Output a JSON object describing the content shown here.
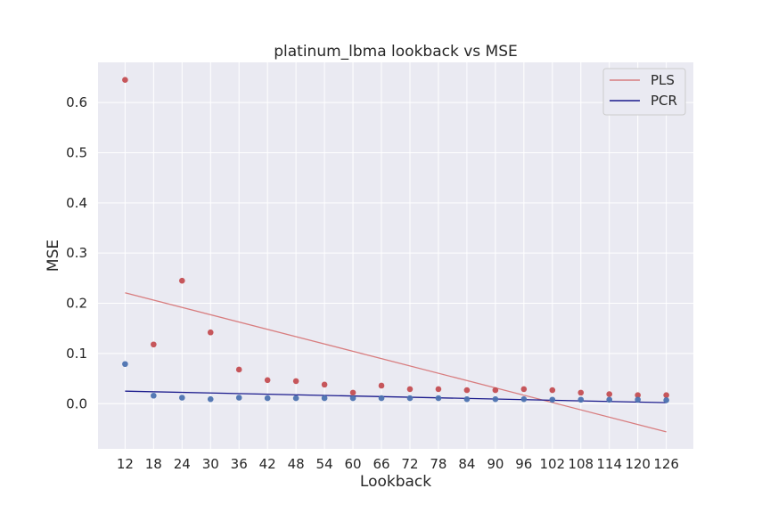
{
  "chart_data": {
    "type": "scatter",
    "title": "platinum_lbma lookback vs MSE",
    "xlabel": "Lookback",
    "ylabel": "MSE",
    "x": [
      12,
      18,
      24,
      30,
      36,
      42,
      48,
      54,
      60,
      66,
      72,
      78,
      84,
      90,
      96,
      102,
      108,
      114,
      120,
      126
    ],
    "xticks": [
      "12",
      "18",
      "24",
      "30",
      "36",
      "42",
      "48",
      "54",
      "60",
      "66",
      "72",
      "78",
      "84",
      "90",
      "96",
      "102",
      "108",
      "114",
      "120",
      "126"
    ],
    "yticks": [
      "0.0",
      "0.1",
      "0.2",
      "0.3",
      "0.4",
      "0.5",
      "0.6"
    ],
    "ylim": [
      -0.09,
      0.68
    ],
    "grid": true,
    "legend": "top-right",
    "scatter_series": [
      {
        "color": "#c44e52",
        "values": [
          0.645,
          0.118,
          0.245,
          0.142,
          0.068,
          0.047,
          0.045,
          0.038,
          0.022,
          0.036,
          0.029,
          0.029,
          0.027,
          0.027,
          0.029,
          0.027,
          0.022,
          0.019,
          0.017,
          0.017
        ]
      },
      {
        "color": "#4c72b0",
        "values": [
          0.079,
          0.016,
          0.012,
          0.009,
          0.012,
          0.011,
          0.011,
          0.011,
          0.011,
          0.011,
          0.011,
          0.011,
          0.009,
          0.009,
          0.009,
          0.008,
          0.008,
          0.008,
          0.008,
          0.007
        ]
      }
    ],
    "series": [
      {
        "name": "PLS",
        "color": "#d87d7f",
        "type": "line",
        "x": [
          12,
          126
        ],
        "values": [
          0.221,
          -0.056
        ]
      },
      {
        "name": "PCR",
        "color": "#1a1a8c",
        "type": "line",
        "x": [
          12,
          126
        ],
        "values": [
          0.025,
          0.002
        ]
      }
    ]
  }
}
